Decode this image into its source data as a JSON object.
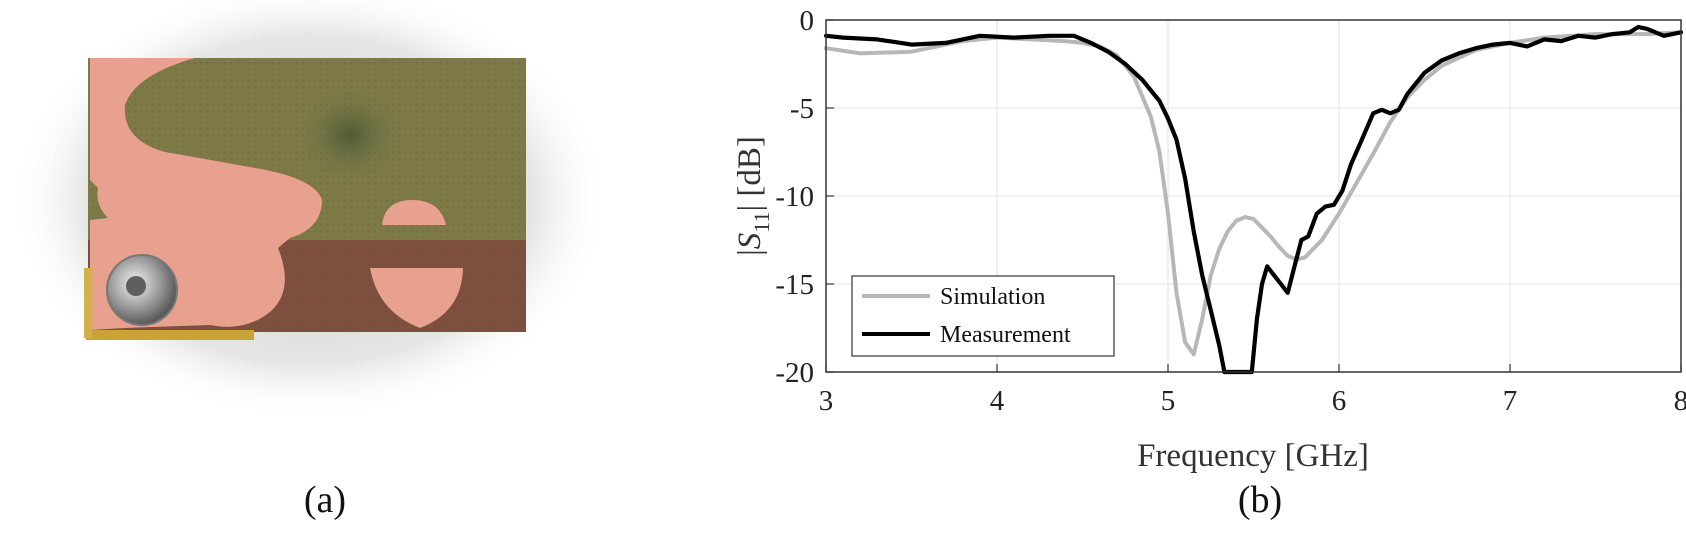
{
  "panels": {
    "a_caption": "(a)",
    "b_caption": "(b)"
  },
  "chart_data": {
    "type": "line",
    "xlabel": "Frequency [GHz]",
    "ylabel": "|S11| [dB]",
    "xlim": [
      3,
      8
    ],
    "ylim": [
      -20,
      0
    ],
    "xticks": [
      3,
      4,
      5,
      6,
      7,
      8
    ],
    "yticks": [
      0,
      -5,
      -10,
      -15,
      -20
    ],
    "grid": true,
    "legend_position": "bottom-left",
    "series": [
      {
        "name": "Simulation",
        "color": "#b7b7b7",
        "x": [
          3.0,
          3.2,
          3.5,
          3.8,
          4.0,
          4.2,
          4.4,
          4.5,
          4.6,
          4.7,
          4.8,
          4.9,
          4.95,
          5.0,
          5.05,
          5.1,
          5.15,
          5.2,
          5.25,
          5.3,
          5.35,
          5.4,
          5.45,
          5.5,
          5.55,
          5.6,
          5.65,
          5.7,
          5.75,
          5.8,
          5.9,
          6.0,
          6.1,
          6.2,
          6.3,
          6.4,
          6.5,
          6.6,
          6.8,
          7.0,
          7.2,
          7.5,
          7.8,
          8.0
        ],
        "y": [
          -1.6,
          -1.9,
          -1.8,
          -1.2,
          -1.0,
          -1.1,
          -1.2,
          -1.3,
          -1.5,
          -2.0,
          -3.2,
          -5.5,
          -7.5,
          -11.0,
          -15.5,
          -18.3,
          -19.0,
          -17.0,
          -14.5,
          -13.0,
          -12.0,
          -11.4,
          -11.2,
          -11.3,
          -11.8,
          -12.3,
          -12.9,
          -13.4,
          -13.6,
          -13.5,
          -12.5,
          -11.0,
          -9.3,
          -7.6,
          -5.8,
          -4.4,
          -3.4,
          -2.6,
          -1.7,
          -1.3,
          -1.0,
          -0.8,
          -0.8,
          -0.7
        ]
      },
      {
        "name": "Measurement",
        "color": "#000000",
        "x": [
          3.0,
          3.1,
          3.3,
          3.5,
          3.7,
          3.9,
          4.1,
          4.3,
          4.45,
          4.55,
          4.65,
          4.75,
          4.85,
          4.95,
          5.0,
          5.05,
          5.1,
          5.15,
          5.2,
          5.25,
          5.3,
          5.33,
          5.49,
          5.52,
          5.55,
          5.58,
          5.62,
          5.66,
          5.7,
          5.74,
          5.78,
          5.82,
          5.87,
          5.92,
          5.97,
          6.02,
          6.07,
          6.12,
          6.16,
          6.2,
          6.25,
          6.3,
          6.35,
          6.4,
          6.5,
          6.6,
          6.7,
          6.8,
          6.9,
          7.0,
          7.1,
          7.2,
          7.3,
          7.4,
          7.5,
          7.6,
          7.7,
          7.75,
          7.8,
          7.9,
          8.0
        ],
        "y": [
          -0.9,
          -1.0,
          -1.1,
          -1.4,
          -1.3,
          -0.9,
          -1.0,
          -0.9,
          -0.9,
          -1.3,
          -1.8,
          -2.5,
          -3.4,
          -4.6,
          -5.6,
          -6.8,
          -9.0,
          -12.0,
          -14.5,
          -16.5,
          -18.5,
          -20.0,
          -20.0,
          -17.0,
          -15.0,
          -14.0,
          -14.5,
          -15.0,
          -15.5,
          -14.0,
          -12.5,
          -12.3,
          -11.0,
          -10.6,
          -10.5,
          -9.7,
          -8.2,
          -7.1,
          -6.2,
          -5.3,
          -5.1,
          -5.3,
          -5.1,
          -4.2,
          -3.0,
          -2.3,
          -1.9,
          -1.6,
          -1.4,
          -1.3,
          -1.5,
          -1.1,
          -1.2,
          -0.9,
          -1.0,
          -0.8,
          -0.7,
          -0.4,
          -0.5,
          -0.9,
          -0.7
        ]
      }
    ]
  }
}
